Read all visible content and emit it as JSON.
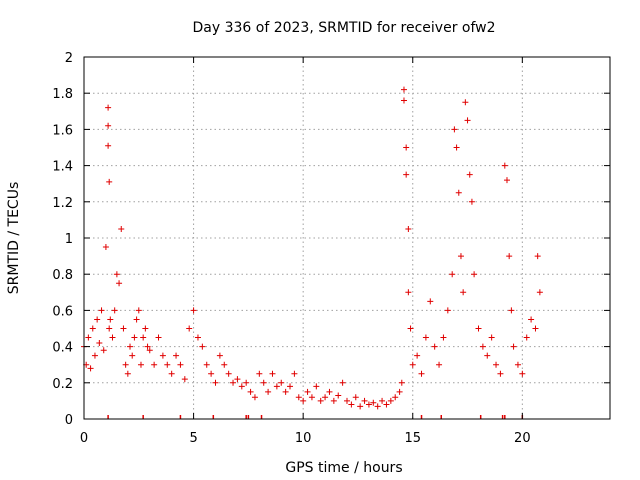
{
  "chart_data": {
    "type": "scatter",
    "title": "Day 336 of 2023, SRMTID for receiver ofw2",
    "xlabel": "GPS time / hours",
    "ylabel": "SRMTID / TECUs",
    "xlim": [
      0,
      24
    ],
    "ylim": [
      0,
      2
    ],
    "x_ticks": [
      0,
      5,
      10,
      15,
      20
    ],
    "x_tick_labels": [
      "0",
      "5",
      "10",
      "15",
      "20"
    ],
    "y_ticks": [
      0,
      0.2,
      0.4,
      0.6,
      0.8,
      1,
      1.2,
      1.4,
      1.6,
      1.8,
      2
    ],
    "y_tick_labels": [
      "0",
      "0.2",
      "0.4",
      "0.6",
      "0.8",
      "1",
      "1.2",
      "1.4",
      "1.6",
      "1.8",
      "2"
    ],
    "grid": true,
    "marker": "+",
    "series": [
      {
        "name": "SRMTID ofw2",
        "color": "#e00000",
        "x": [
          0.0,
          0.1,
          0.2,
          0.3,
          0.4,
          0.5,
          0.6,
          0.7,
          0.8,
          0.9,
          1.0,
          1.1,
          1.1,
          1.1,
          1.15,
          1.15,
          1.2,
          1.3,
          1.4,
          1.5,
          1.6,
          1.7,
          1.8,
          1.9,
          2.0,
          2.1,
          2.2,
          2.3,
          2.4,
          2.5,
          2.6,
          2.7,
          2.8,
          2.9,
          3.0,
          3.2,
          3.4,
          3.6,
          3.8,
          4.0,
          4.2,
          4.4,
          4.6,
          4.8,
          5.0,
          5.2,
          5.4,
          5.6,
          5.8,
          6.0,
          6.2,
          6.4,
          6.6,
          6.8,
          7.0,
          7.2,
          7.4,
          7.6,
          7.8,
          8.0,
          8.2,
          8.4,
          8.6,
          8.8,
          9.0,
          9.2,
          9.4,
          9.6,
          9.8,
          10.0,
          10.2,
          10.4,
          10.6,
          10.8,
          11.0,
          11.2,
          11.4,
          11.6,
          11.8,
          12.0,
          12.2,
          12.4,
          12.6,
          12.8,
          13.0,
          13.2,
          13.4,
          13.6,
          13.8,
          14.0,
          14.2,
          14.4,
          14.5,
          14.6,
          14.6,
          14.7,
          14.7,
          14.8,
          14.8,
          14.9,
          15.0,
          15.2,
          15.4,
          15.6,
          15.8,
          16.0,
          16.2,
          16.4,
          16.6,
          16.8,
          16.9,
          17.0,
          17.1,
          17.2,
          17.3,
          17.4,
          17.5,
          17.6,
          17.7,
          17.8,
          18.0,
          18.2,
          18.4,
          18.6,
          18.8,
          19.0,
          19.2,
          19.3,
          19.4,
          19.5,
          19.6,
          19.8,
          20.0,
          20.2,
          20.4,
          20.6,
          20.7,
          20.8
        ],
        "y": [
          0.4,
          0.3,
          0.45,
          0.28,
          0.5,
          0.35,
          0.55,
          0.42,
          0.6,
          0.38,
          0.95,
          1.72,
          1.62,
          1.51,
          1.31,
          0.5,
          0.55,
          0.45,
          0.6,
          0.8,
          0.75,
          1.05,
          0.5,
          0.3,
          0.25,
          0.4,
          0.35,
          0.45,
          0.55,
          0.6,
          0.3,
          0.45,
          0.5,
          0.4,
          0.38,
          0.3,
          0.45,
          0.35,
          0.3,
          0.25,
          0.35,
          0.3,
          0.22,
          0.5,
          0.6,
          0.45,
          0.4,
          0.3,
          0.25,
          0.2,
          0.35,
          0.3,
          0.25,
          0.2,
          0.22,
          0.18,
          0.2,
          0.15,
          0.12,
          0.25,
          0.2,
          0.15,
          0.25,
          0.18,
          0.2,
          0.15,
          0.18,
          0.25,
          0.12,
          0.1,
          0.15,
          0.12,
          0.18,
          0.1,
          0.12,
          0.15,
          0.1,
          0.13,
          0.2,
          0.1,
          0.08,
          0.12,
          0.07,
          0.1,
          0.08,
          0.09,
          0.07,
          0.1,
          0.08,
          0.1,
          0.12,
          0.15,
          0.2,
          1.82,
          1.76,
          1.5,
          1.35,
          1.05,
          0.7,
          0.5,
          0.3,
          0.35,
          0.25,
          0.45,
          0.65,
          0.4,
          0.3,
          0.45,
          0.6,
          0.8,
          1.6,
          1.5,
          1.25,
          0.9,
          0.7,
          1.75,
          1.65,
          1.35,
          1.2,
          0.8,
          0.5,
          0.4,
          0.35,
          0.45,
          0.3,
          0.25,
          1.4,
          1.32,
          0.9,
          0.6,
          0.4,
          0.3,
          0.25,
          0.45,
          0.55,
          0.5,
          0.9,
          0.7
        ]
      }
    ],
    "zero_markers_x": [
      1.1,
      2.7,
      4.4,
      5.9,
      7.4,
      7.5,
      8.1,
      15.4,
      16.3,
      18.1,
      19.1,
      19.2,
      20.0
    ]
  }
}
